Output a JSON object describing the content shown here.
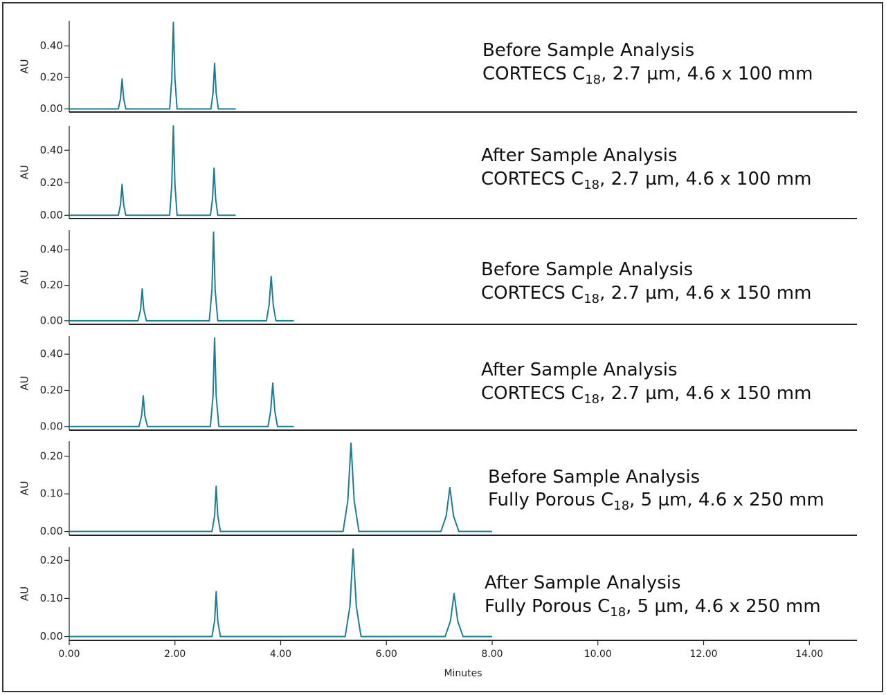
{
  "chart_data": [
    {
      "type": "line",
      "ylabel": "AU",
      "annotation": {
        "line1": "Before Sample Analysis",
        "column": "CORTECS C",
        "subscript": "18",
        "rest": ", 2.7 µm, 4.6 x 100 mm"
      },
      "xlim": [
        0,
        14.9
      ],
      "ylim": [
        -0.02,
        0.56
      ],
      "yticks": [
        {
          "value": 0,
          "label": "0.00"
        },
        {
          "value": 0.2,
          "label": "0.20"
        },
        {
          "value": 0.4,
          "label": "0.40"
        }
      ],
      "x": [
        0,
        0.93,
        0.97,
        1.0,
        1.03,
        1.07,
        1.9,
        1.94,
        1.97,
        2.0,
        2.04,
        2.68,
        2.72,
        2.75,
        2.78,
        2.82,
        3.15
      ],
      "series": [
        {
          "color": "#1b7d93",
          "values": [
            0,
            0,
            0.066,
            0.19,
            0.066,
            0,
            0,
            0.19,
            0.55,
            0.19,
            0,
            0,
            0.1,
            0.29,
            0.1,
            0,
            0
          ]
        }
      ]
    },
    {
      "type": "line",
      "ylabel": "AU",
      "annotation": {
        "line1": "After Sample Analysis",
        "column": "CORTECS C",
        "subscript": "18",
        "rest": ", 2.7 µm, 4.6 x 100 mm"
      },
      "xlim": [
        0,
        14.9
      ],
      "ylim": [
        -0.02,
        0.55
      ],
      "yticks": [
        {
          "value": 0,
          "label": "0.00"
        },
        {
          "value": 0.2,
          "label": "0.20"
        },
        {
          "value": 0.4,
          "label": "0.40"
        }
      ],
      "x": [
        0,
        0.93,
        0.97,
        1.0,
        1.03,
        1.07,
        1.9,
        1.94,
        1.97,
        2.0,
        2.04,
        2.67,
        2.71,
        2.74,
        2.77,
        2.81,
        3.15
      ],
      "series": [
        {
          "color": "#1b7d93",
          "values": [
            0,
            0,
            0.066,
            0.19,
            0.066,
            0,
            0,
            0.19,
            0.55,
            0.19,
            0,
            0,
            0.1,
            0.29,
            0.1,
            0,
            0
          ]
        }
      ]
    },
    {
      "type": "line",
      "ylabel": "AU",
      "annotation": {
        "line1": "Before Sample Analysis",
        "column": "CORTECS C",
        "subscript": "18",
        "rest": ", 2.7 µm, 4.6 x 150 mm"
      },
      "xlim": [
        0,
        14.9
      ],
      "ylim": [
        -0.02,
        0.51
      ],
      "yticks": [
        {
          "value": 0,
          "label": "0.00"
        },
        {
          "value": 0.2,
          "label": "0.20"
        },
        {
          "value": 0.4,
          "label": "0.40"
        }
      ],
      "x": [
        0,
        1.3,
        1.35,
        1.38,
        1.41,
        1.46,
        2.65,
        2.7,
        2.73,
        2.76,
        2.81,
        3.73,
        3.78,
        3.82,
        3.86,
        3.91,
        4.25
      ],
      "series": [
        {
          "color": "#1b7d93",
          "values": [
            0,
            0,
            0.063,
            0.18,
            0.063,
            0,
            0,
            0.175,
            0.5,
            0.175,
            0,
            0,
            0.088,
            0.25,
            0.088,
            0,
            0
          ]
        }
      ]
    },
    {
      "type": "line",
      "ylabel": "AU",
      "annotation": {
        "line1": "After Sample Analysis",
        "column": "CORTECS C",
        "subscript": "18",
        "rest": ", 2.7 µm, 4.6 x 150 mm"
      },
      "xlim": [
        0,
        14.9
      ],
      "ylim": [
        -0.02,
        0.5
      ],
      "yticks": [
        {
          "value": 0,
          "label": "0.00"
        },
        {
          "value": 0.2,
          "label": "0.20"
        },
        {
          "value": 0.4,
          "label": "0.40"
        }
      ],
      "x": [
        0,
        1.32,
        1.37,
        1.4,
        1.43,
        1.48,
        2.67,
        2.72,
        2.75,
        2.78,
        2.83,
        3.76,
        3.81,
        3.85,
        3.89,
        3.94,
        4.25
      ],
      "series": [
        {
          "color": "#1b7d93",
          "values": [
            0,
            0,
            0.06,
            0.17,
            0.06,
            0,
            0,
            0.17,
            0.49,
            0.17,
            0,
            0,
            0.084,
            0.24,
            0.084,
            0,
            0
          ]
        }
      ]
    },
    {
      "type": "line",
      "ylabel": "AU",
      "annotation": {
        "line1": "Before Sample Analysis",
        "column": "Fully Porous C",
        "subscript": "18",
        "rest": ", 5 µm, 4.6 x 250 mm"
      },
      "xlim": [
        0,
        14.9
      ],
      "ylim": [
        -0.01,
        0.24
      ],
      "yticks": [
        {
          "value": 0,
          "label": "0.00"
        },
        {
          "value": 0.1,
          "label": "0.10"
        },
        {
          "value": 0.2,
          "label": "0.20"
        }
      ],
      "x": [
        0,
        2.7,
        2.75,
        2.78,
        2.81,
        2.86,
        5.18,
        5.27,
        5.33,
        5.39,
        5.48,
        7.03,
        7.13,
        7.2,
        7.27,
        7.37,
        8.0
      ],
      "series": [
        {
          "color": "#1b7d93",
          "values": [
            0,
            0,
            0.042,
            0.12,
            0.042,
            0,
            0,
            0.082,
            0.235,
            0.082,
            0,
            0,
            0.041,
            0.117,
            0.041,
            0,
            0
          ]
        }
      ]
    },
    {
      "type": "line",
      "ylabel": "AU",
      "annotation": {
        "line1": "After Sample Analysis",
        "column": "Fully Porous C",
        "subscript": "18",
        "rest": ", 5 µm, 4.6 x 250 mm"
      },
      "xlim": [
        0,
        14.9
      ],
      "ylim": [
        -0.01,
        0.235
      ],
      "yticks": [
        {
          "value": 0,
          "label": "0.00"
        },
        {
          "value": 0.1,
          "label": "0.10"
        },
        {
          "value": 0.2,
          "label": "0.20"
        }
      ],
      "xlabel": "Minutes",
      "xticks": [
        {
          "value": 0,
          "label": "0.00"
        },
        {
          "value": 2,
          "label": "2.00"
        },
        {
          "value": 4,
          "label": "4.00"
        },
        {
          "value": 6,
          "label": "6.00"
        },
        {
          "value": 8,
          "label": "8.00"
        },
        {
          "value": 10,
          "label": "10.00"
        },
        {
          "value": 12,
          "label": "12.00"
        },
        {
          "value": 14,
          "label": "14.00"
        }
      ],
      "x": [
        0,
        2.7,
        2.75,
        2.78,
        2.81,
        2.86,
        5.22,
        5.31,
        5.37,
        5.43,
        5.52,
        7.11,
        7.21,
        7.28,
        7.35,
        7.45,
        8.0
      ],
      "series": [
        {
          "color": "#1b7d93",
          "values": [
            0,
            0,
            0.041,
            0.118,
            0.041,
            0,
            0,
            0.08,
            0.23,
            0.08,
            0,
            0,
            0.04,
            0.113,
            0.04,
            0,
            0
          ]
        }
      ]
    }
  ]
}
